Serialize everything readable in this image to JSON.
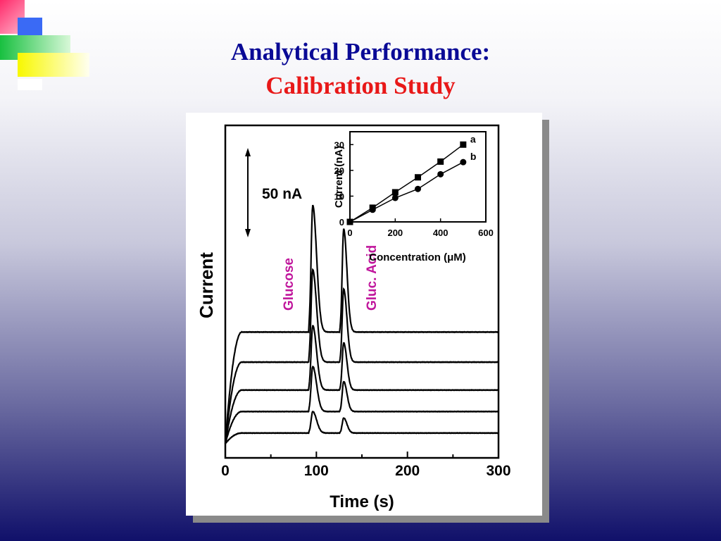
{
  "slide": {
    "title_line1": "Analytical Performance:",
    "title_line2": "Calibration Study",
    "title_color1": "#0a0a96",
    "title_color2": "#e81818"
  },
  "chart_data": [
    {
      "type": "line",
      "xlabel": "Time (s)",
      "ylabel": "Current",
      "xlim": [
        0,
        300
      ],
      "xticks": [
        0,
        100,
        200,
        300
      ],
      "scale_bar_label": "50 nA",
      "peak_labels": [
        "Glucose",
        "Gluc. Acid"
      ],
      "peak_label_color": "#c0169c",
      "peak_times": [
        96,
        130
      ],
      "series": [
        {
          "baseline": 5,
          "peaks": [
            10,
            7
          ]
        },
        {
          "baseline": 15,
          "peaks": [
            21,
            14
          ]
        },
        {
          "baseline": 25,
          "peaks": [
            30,
            22
          ]
        },
        {
          "baseline": 38,
          "peaks": [
            43,
            34
          ]
        },
        {
          "baseline": 52,
          "peaks": [
            59,
            48
          ]
        }
      ]
    },
    {
      "type": "line",
      "xlabel": "Concentration (μM)",
      "ylabel": "Current (nA)",
      "xlim": [
        0,
        600
      ],
      "ylim": [
        0,
        35
      ],
      "xticks": [
        0,
        200,
        400,
        600
      ],
      "yticks": [
        0,
        10,
        20,
        30
      ],
      "series": [
        {
          "name": "a",
          "marker": "square",
          "x": [
            0,
            100,
            200,
            300,
            400,
            500
          ],
          "y": [
            0,
            5.5,
            11.5,
            17.3,
            23.4,
            30
          ]
        },
        {
          "name": "b",
          "marker": "circle",
          "x": [
            0,
            100,
            200,
            300,
            400,
            500
          ],
          "y": [
            0,
            4.7,
            9.3,
            12.8,
            18.5,
            23.2
          ]
        }
      ]
    }
  ]
}
